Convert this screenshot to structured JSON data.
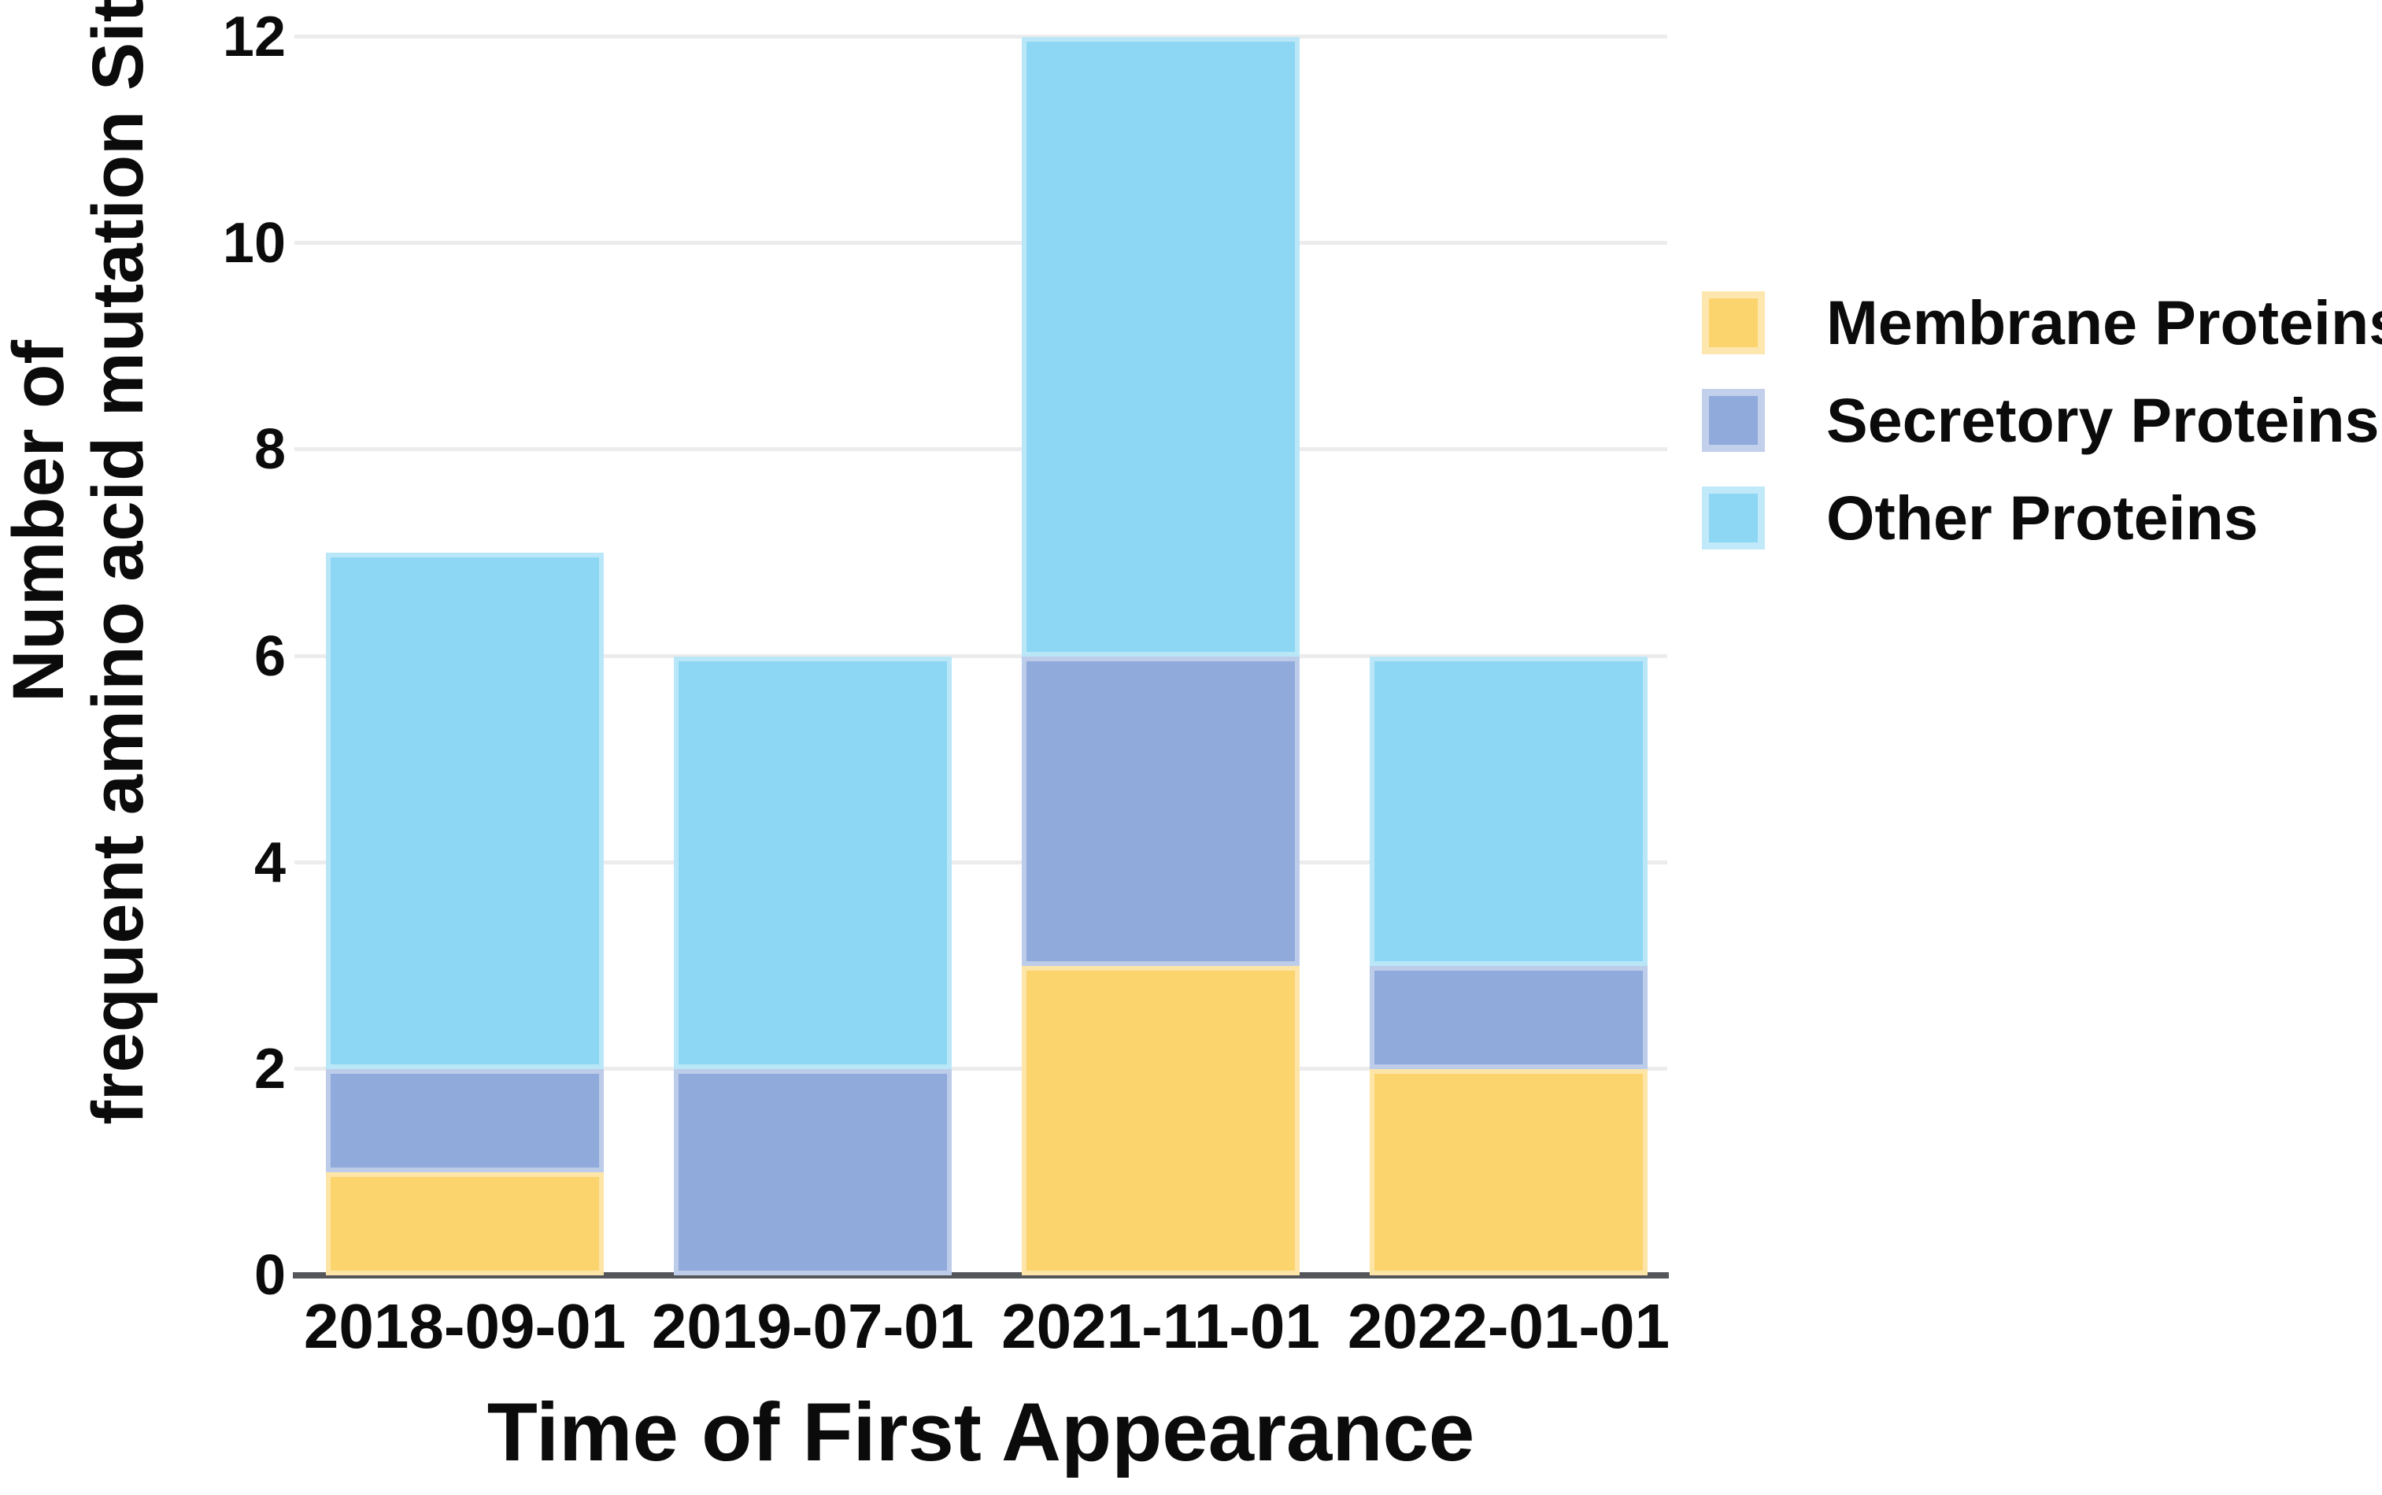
{
  "chart_data": {
    "type": "bar",
    "stacked": true,
    "categories": [
      "2018-09-01",
      "2019-07-01",
      "2021-11-01",
      "2022-01-01"
    ],
    "series": [
      {
        "name": "Membrane Proteins",
        "color": "#FCD46E",
        "values": [
          1,
          0,
          3,
          2
        ]
      },
      {
        "name": "Secretory Proteins",
        "color": "#90AADB",
        "values": [
          1,
          2,
          3,
          1
        ]
      },
      {
        "name": "Other Proteins",
        "color": "#8DD7F4",
        "values": [
          5,
          4,
          6,
          3
        ]
      }
    ],
    "stack_totals": [
      7,
      6,
      12,
      6
    ],
    "xlabel": "Time of First Appearance",
    "ylabel_line1": "Number of",
    "ylabel_line2": "frequent amino acid mutation Sites",
    "yticks": [
      0,
      2,
      4,
      6,
      8,
      10,
      12
    ],
    "ylim": [
      0,
      12
    ],
    "grid": "horizontal gridlines at even values only",
    "legend_position": "right",
    "colors": {
      "axis_line": "#54565A",
      "gridline": "#ECECEE",
      "text": "#0B0B0B",
      "background": "#FFFFFF"
    }
  }
}
